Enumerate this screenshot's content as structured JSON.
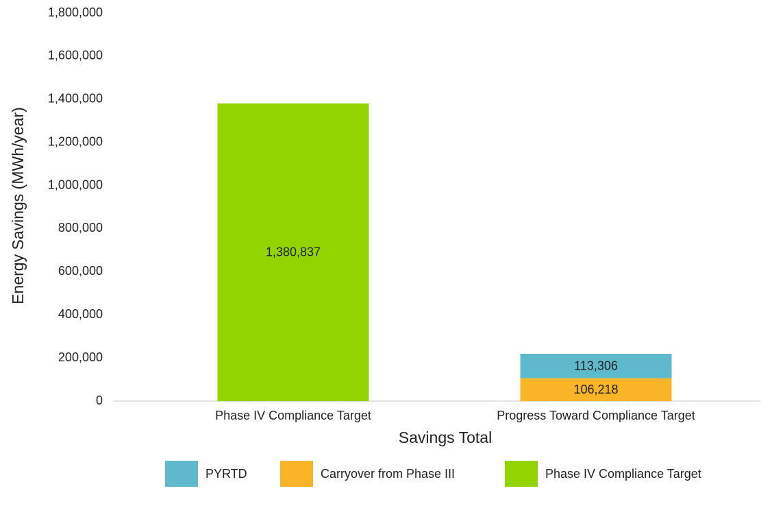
{
  "chart_data": {
    "type": "bar",
    "stacked": true,
    "y_label": "Energy Savings (MWh/year)",
    "x_label": "Savings Total",
    "categories": [
      "Phase IV Compliance Target",
      "Progress Toward Compliance Target"
    ],
    "series": [
      {
        "name": "PYRTD",
        "color": "#5fb9cc",
        "values": [
          null,
          113306
        ],
        "value_labels": [
          null,
          "113,306"
        ]
      },
      {
        "name": "Carryover from Phase III",
        "color": "#f9b427",
        "values": [
          null,
          106218
        ],
        "value_labels": [
          null,
          "106,218"
        ]
      },
      {
        "name": "Phase IV Compliance Target",
        "color": "#92d400",
        "values": [
          1380837,
          null
        ],
        "value_labels": [
          "1,380,837",
          null
        ]
      }
    ],
    "ylim": [
      0,
      1800000
    ],
    "yticks": [
      0,
      {
        "value": 200000,
        "label": "200,000"
      },
      {
        "value": 400000,
        "label": "400,000"
      },
      {
        "value": 600000,
        "label": "600,000"
      },
      {
        "value": 800000,
        "label": "800,000"
      },
      {
        "value": 1000000,
        "label": "1,000,000"
      },
      {
        "value": 1200000,
        "label": "1,200,000"
      },
      {
        "value": 1400000,
        "label": "1,400,000"
      },
      {
        "value": 1600000,
        "label": "1,600,000"
      },
      {
        "value": 1800000,
        "label": "1,800,000"
      }
    ],
    "grid": false,
    "legend": "bottom"
  }
}
